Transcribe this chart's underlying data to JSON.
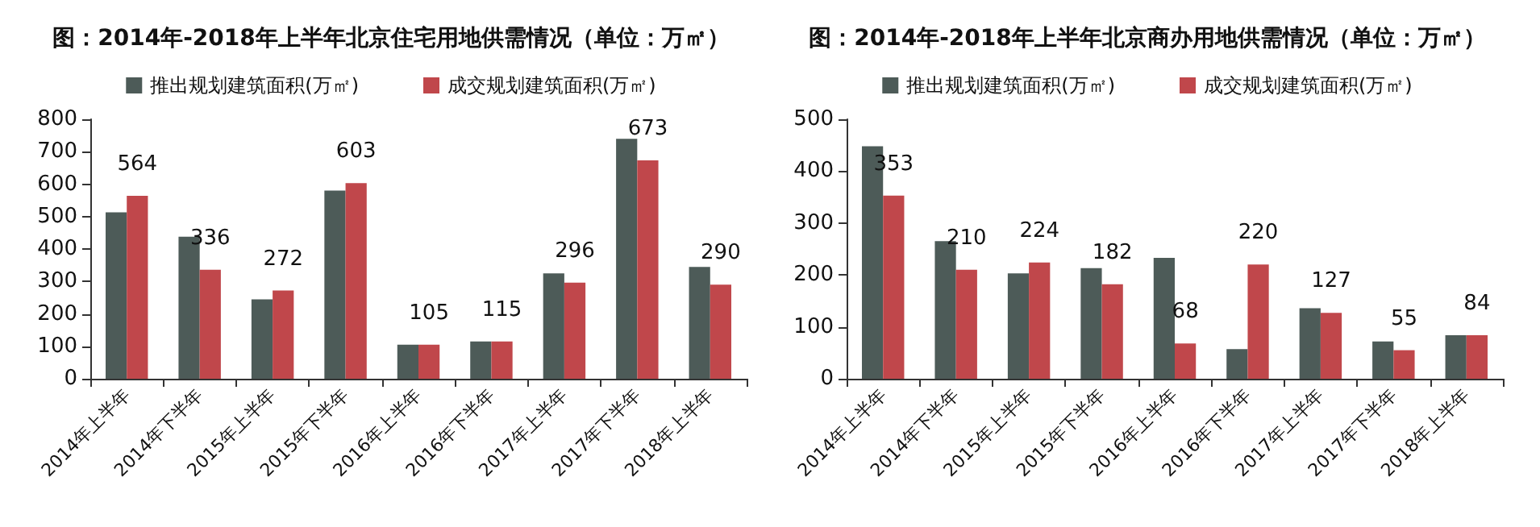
{
  "chart_data": [
    {
      "type": "bar",
      "title": "图：2014年-2018年上半年北京住宅用地供需情况（单位：万㎡）",
      "categories": [
        "2014年上半年",
        "2014年下半年",
        "2015年上半年",
        "2015年下半年",
        "2016年上半年",
        "2016年下半年",
        "2017年上半年",
        "2017年下半年",
        "2018年上半年"
      ],
      "series": [
        {
          "name": "推出规划建筑面积(万㎡)",
          "color": "#4d5b58",
          "values": [
            513,
            438,
            245,
            580,
            105,
            115,
            325,
            740,
            345
          ]
        },
        {
          "name": "成交规划建筑面积(万㎡)",
          "color": "#c0474b",
          "values": [
            564,
            336,
            272,
            603,
            105,
            115,
            296,
            673,
            290
          ],
          "value_labels": [
            "564",
            "336",
            "272",
            "603",
            "105",
            "115",
            "296",
            "673",
            "290"
          ]
        }
      ],
      "ylim": [
        0,
        800
      ],
      "yticks": [
        0,
        100,
        200,
        300,
        400,
        500,
        600,
        700,
        800
      ],
      "grid": false,
      "legend": "top"
    },
    {
      "type": "bar",
      "title": "图：2014年-2018年上半年北京商办用地供需情况（单位：万㎡）",
      "categories": [
        "2014年上半年",
        "2014年下半年",
        "2015年上半年",
        "2015年下半年",
        "2016年上半年",
        "2016年下半年",
        "2017年上半年",
        "2017年下半年",
        "2018年上半年"
      ],
      "series": [
        {
          "name": "推出规划建筑面积(万㎡)",
          "color": "#4d5b58",
          "values": [
            448,
            265,
            203,
            213,
            233,
            57,
            136,
            72,
            84
          ]
        },
        {
          "name": "成交规划建筑面积(万㎡)",
          "color": "#c0474b",
          "values": [
            353,
            210,
            224,
            182,
            68,
            220,
            127,
            55,
            84
          ],
          "value_labels": [
            "353",
            "210",
            "224",
            "182",
            "68",
            "220",
            "127",
            "55",
            "84"
          ]
        }
      ],
      "ylim": [
        0,
        500
      ],
      "yticks": [
        0,
        100,
        200,
        300,
        400,
        500
      ],
      "grid": false,
      "legend": "top"
    }
  ]
}
